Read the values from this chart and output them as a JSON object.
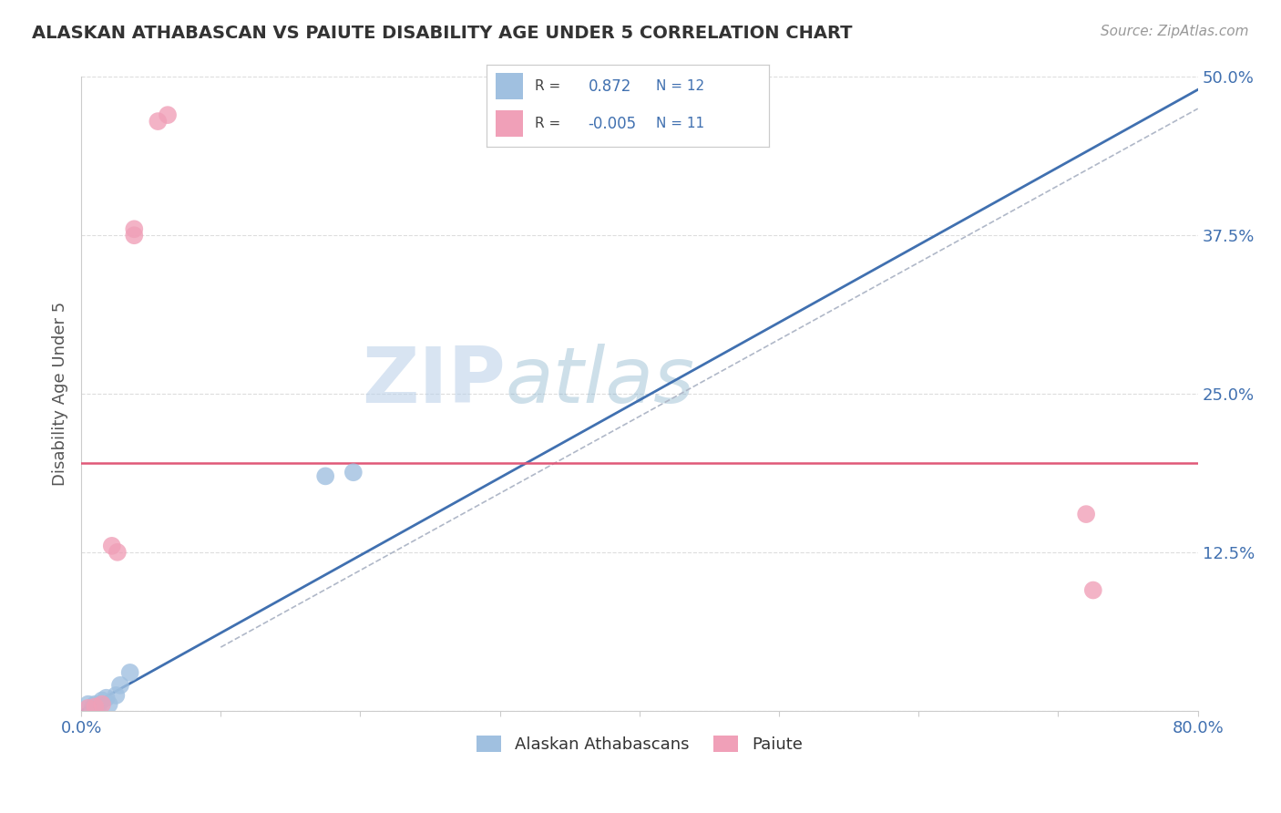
{
  "title": "ALASKAN ATHABASCAN VS PAIUTE DISABILITY AGE UNDER 5 CORRELATION CHART",
  "source": "Source: ZipAtlas.com",
  "ylabel": "Disability Age Under 5",
  "xlim": [
    0.0,
    0.8
  ],
  "ylim": [
    0.0,
    0.5
  ],
  "xticks": [
    0.0,
    0.1,
    0.2,
    0.3,
    0.4,
    0.5,
    0.6,
    0.7,
    0.8
  ],
  "xtick_labels": [
    "0.0%",
    "",
    "",
    "",
    "",
    "",
    "",
    "",
    "80.0%"
  ],
  "ytick_labels": [
    "",
    "12.5%",
    "25.0%",
    "37.5%",
    "50.0%"
  ],
  "yticks": [
    0.0,
    0.125,
    0.25,
    0.375,
    0.5
  ],
  "blue_color": "#a0c0e0",
  "pink_color": "#f0a0b8",
  "blue_line_color": "#4070b0",
  "pink_line_color": "#e05878",
  "legend_blue_label": "Alaskan Athabascans",
  "legend_pink_label": "Paiute",
  "blue_dots": [
    [
      0.005,
      0.005
    ],
    [
      0.008,
      0.002
    ],
    [
      0.01,
      0.005
    ],
    [
      0.012,
      0.003
    ],
    [
      0.015,
      0.008
    ],
    [
      0.018,
      0.01
    ],
    [
      0.02,
      0.005
    ],
    [
      0.025,
      0.012
    ],
    [
      0.028,
      0.02
    ],
    [
      0.035,
      0.03
    ],
    [
      0.175,
      0.185
    ],
    [
      0.195,
      0.188
    ]
  ],
  "pink_dots": [
    [
      0.005,
      0.002
    ],
    [
      0.01,
      0.003
    ],
    [
      0.015,
      0.005
    ],
    [
      0.022,
      0.13
    ],
    [
      0.026,
      0.125
    ],
    [
      0.038,
      0.375
    ],
    [
      0.055,
      0.465
    ],
    [
      0.062,
      0.47
    ],
    [
      0.72,
      0.155
    ],
    [
      0.725,
      0.095
    ],
    [
      0.038,
      0.38
    ]
  ],
  "blue_line_x": [
    0.0,
    0.8
  ],
  "blue_line_y": [
    0.0,
    0.49
  ],
  "pink_line_x": [
    0.0,
    0.8
  ],
  "pink_line_y": [
    0.195,
    0.195
  ],
  "dash_line_x": [
    0.1,
    0.8
  ],
  "dash_line_y": [
    0.05,
    0.475
  ],
  "watermark_zip": "ZIP",
  "watermark_atlas": "atlas",
  "watermark_color_zip": "#b8cfe0",
  "watermark_color_atlas": "#b0c8d8",
  "background_color": "#ffffff",
  "grid_color": "#dddddd"
}
